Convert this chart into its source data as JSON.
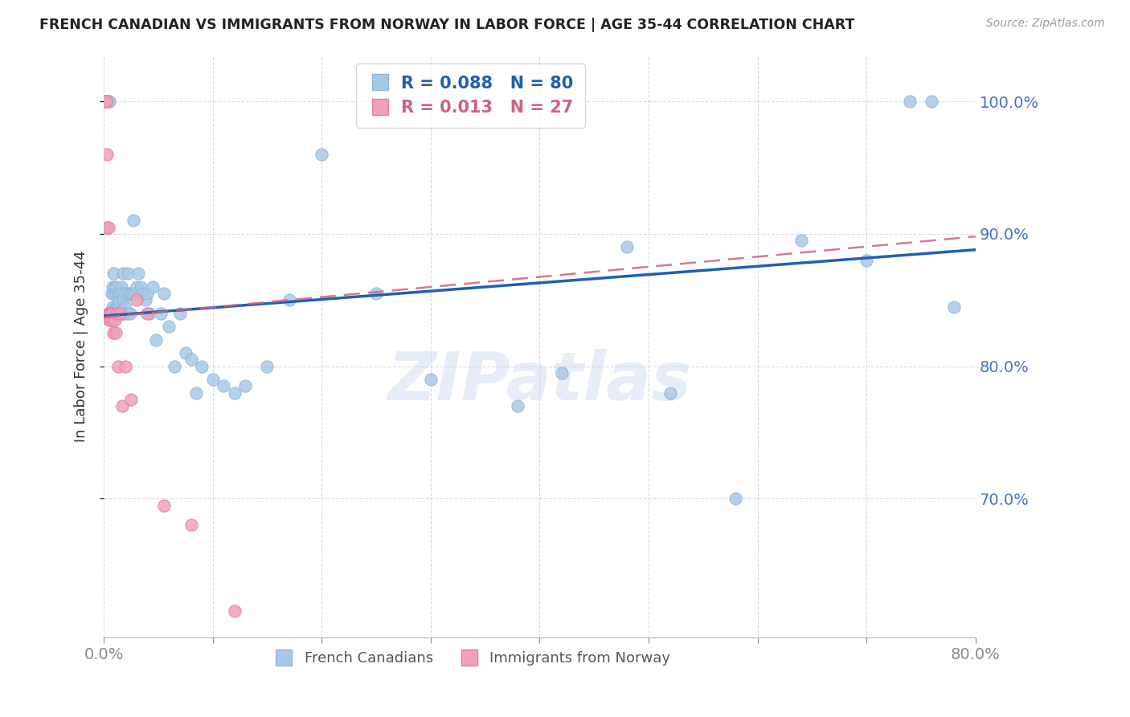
{
  "title": "FRENCH CANADIAN VS IMMIGRANTS FROM NORWAY IN LABOR FORCE | AGE 35-44 CORRELATION CHART",
  "source": "Source: ZipAtlas.com",
  "ylabel": "In Labor Force | Age 35-44",
  "xlim": [
    0.0,
    0.8
  ],
  "ylim": [
    0.595,
    1.035
  ],
  "yticks_right": [
    0.7,
    0.8,
    0.9,
    1.0
  ],
  "ytick_labels_right": [
    "70.0%",
    "80.0%",
    "90.0%",
    "100.0%"
  ],
  "blue_R": 0.088,
  "blue_N": 80,
  "pink_R": 0.013,
  "pink_N": 27,
  "blue_color": "#a8c8e8",
  "pink_color": "#f0a0b8",
  "blue_line_color": "#2060b0",
  "pink_line_color": "#d06080",
  "legend_label_blue": "French Canadians",
  "legend_label_pink": "Immigrants from Norway",
  "watermark": "ZIPatlas",
  "blue_line_x0": 0.0,
  "blue_line_y0": 0.838,
  "blue_line_x1": 0.8,
  "blue_line_y1": 0.888,
  "pink_line_x0": 0.0,
  "pink_line_y0": 0.837,
  "pink_line_x1": 0.8,
  "pink_line_y1": 0.898,
  "blue_x": [
    0.002,
    0.003,
    0.003,
    0.004,
    0.004,
    0.005,
    0.005,
    0.006,
    0.007,
    0.007,
    0.008,
    0.008,
    0.009,
    0.009,
    0.01,
    0.01,
    0.011,
    0.011,
    0.012,
    0.012,
    0.013,
    0.013,
    0.014,
    0.014,
    0.015,
    0.015,
    0.016,
    0.016,
    0.017,
    0.017,
    0.018,
    0.018,
    0.019,
    0.02,
    0.02,
    0.021,
    0.022,
    0.023,
    0.024,
    0.025,
    0.026,
    0.027,
    0.028,
    0.03,
    0.032,
    0.034,
    0.036,
    0.038,
    0.04,
    0.042,
    0.045,
    0.048,
    0.052,
    0.055,
    0.06,
    0.065,
    0.07,
    0.075,
    0.08,
    0.085,
    0.09,
    0.1,
    0.11,
    0.12,
    0.13,
    0.15,
    0.17,
    0.2,
    0.25,
    0.3,
    0.38,
    0.42,
    0.48,
    0.52,
    0.58,
    0.64,
    0.7,
    0.74,
    0.76,
    0.78
  ],
  "blue_y": [
    1.0,
    1.0,
    1.0,
    1.0,
    1.0,
    1.0,
    0.84,
    0.84,
    0.84,
    0.855,
    0.86,
    0.845,
    0.855,
    0.87,
    0.84,
    0.86,
    0.845,
    0.855,
    0.845,
    0.86,
    0.845,
    0.855,
    0.845,
    0.85,
    0.84,
    0.855,
    0.84,
    0.86,
    0.84,
    0.855,
    0.85,
    0.87,
    0.84,
    0.845,
    0.855,
    0.84,
    0.87,
    0.855,
    0.84,
    0.855,
    0.855,
    0.91,
    0.855,
    0.86,
    0.87,
    0.86,
    0.855,
    0.85,
    0.855,
    0.84,
    0.86,
    0.82,
    0.84,
    0.855,
    0.83,
    0.8,
    0.84,
    0.81,
    0.805,
    0.78,
    0.8,
    0.79,
    0.785,
    0.78,
    0.785,
    0.8,
    0.85,
    0.96,
    0.855,
    0.79,
    0.77,
    0.795,
    0.89,
    0.78,
    0.7,
    0.895,
    0.88,
    1.0,
    1.0,
    0.845
  ],
  "pink_x": [
    0.001,
    0.002,
    0.002,
    0.003,
    0.003,
    0.004,
    0.004,
    0.005,
    0.005,
    0.006,
    0.006,
    0.007,
    0.008,
    0.009,
    0.01,
    0.011,
    0.012,
    0.013,
    0.015,
    0.017,
    0.02,
    0.025,
    0.03,
    0.04,
    0.055,
    0.08,
    0.12
  ],
  "pink_y": [
    1.0,
    1.0,
    1.0,
    0.96,
    0.905,
    0.905,
    0.84,
    0.84,
    0.835,
    0.84,
    0.835,
    0.84,
    0.835,
    0.825,
    0.835,
    0.825,
    0.84,
    0.8,
    0.84,
    0.77,
    0.8,
    0.775,
    0.85,
    0.84,
    0.695,
    0.68,
    0.615
  ]
}
